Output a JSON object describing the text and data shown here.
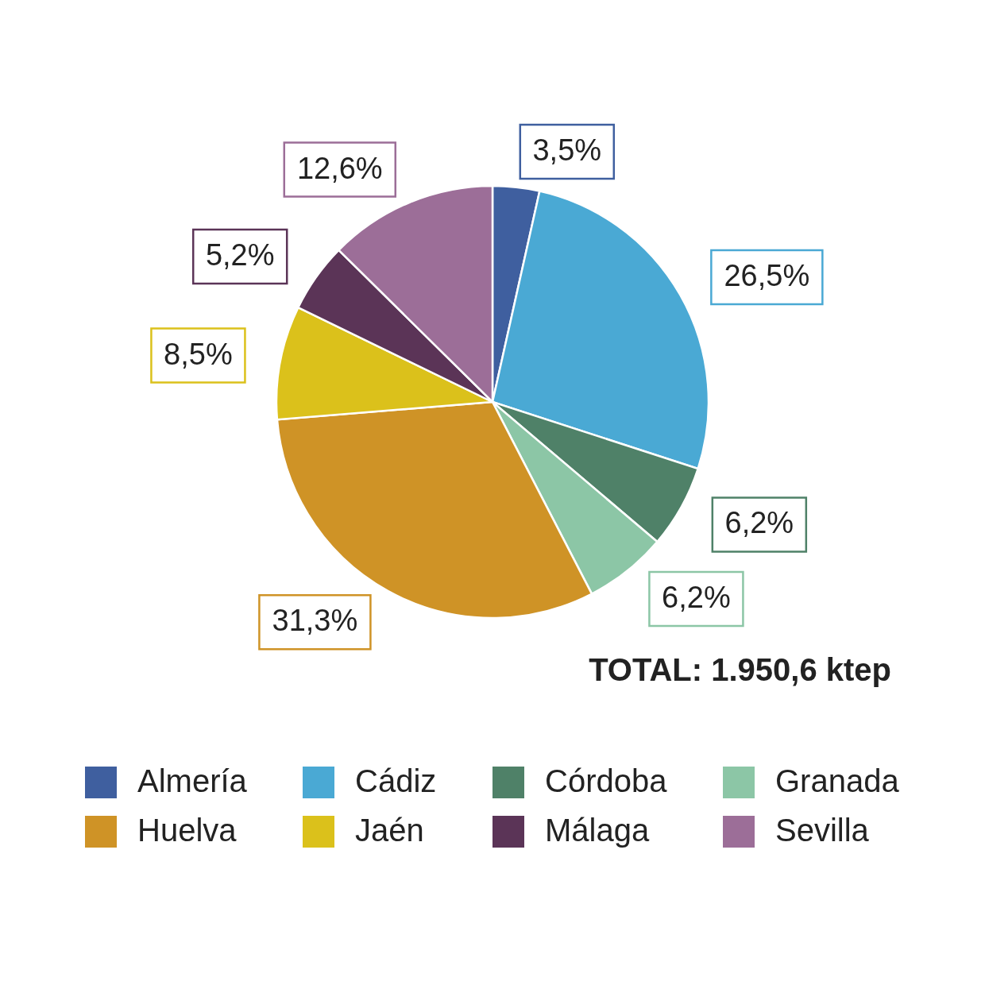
{
  "chart_data": {
    "type": "pie",
    "categories": [
      "Almería",
      "Cádiz",
      "Córdoba",
      "Granada",
      "Huelva",
      "Jaén",
      "Málaga",
      "Sevilla"
    ],
    "values": [
      3.5,
      26.5,
      6.2,
      6.2,
      31.3,
      8.5,
      5.2,
      12.6
    ],
    "colors": [
      "#3f5f9f",
      "#4aa9d4",
      "#4f8168",
      "#8cc6a6",
      "#cf9326",
      "#dbc11b",
      "#5b3457",
      "#9c6e98"
    ],
    "value_labels": [
      "3,5%",
      "26,5%",
      "6,2%",
      "6,2%",
      "31,3%",
      "8,5%",
      "5,2%",
      "12,6%"
    ],
    "legend": "bottom",
    "annotations": [
      "TOTAL: 1.950,6 ktep"
    ]
  }
}
